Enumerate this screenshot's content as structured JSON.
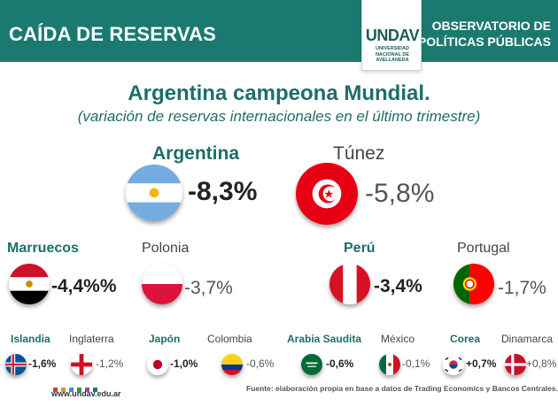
{
  "header": {
    "left_title": "CAÍDA DE RESERVAS",
    "right_line1": "OBSERVATORIO DE",
    "right_line2": "POLÍTICAS PÚBLICAS",
    "logo_text": "UNDAV",
    "logo_sub1": "UNIVERSIDAD",
    "logo_sub2": "NACIONAL DE",
    "logo_sub3": "AVELLANEDA"
  },
  "chart_data": {
    "type": "table",
    "title": "Argentina campeona Mundial.",
    "subtitle": "(variación de reservas internacionales en el último trimestre)",
    "countries": [
      {
        "name": "Argentina",
        "label": "-8,3%",
        "value": -8.3,
        "flag": "argentina-flag"
      },
      {
        "name": "Túnez",
        "label": "-5,8%",
        "value": -5.8,
        "flag": "tunisia-flag"
      },
      {
        "name": "Marruecos",
        "label": "-4,4%%",
        "value": -4.4,
        "flag": "egypt-flag"
      },
      {
        "name": "Polonia",
        "label": "-3,7%",
        "value": -3.7,
        "flag": "poland-flag"
      },
      {
        "name": "Perú",
        "label": "-3,4%",
        "value": -3.4,
        "flag": "peru-flag"
      },
      {
        "name": "Portugal",
        "label": "-1,7%",
        "value": -1.7,
        "flag": "portugal-flag"
      },
      {
        "name": "Islandia",
        "label": "-1,6%",
        "value": -1.6,
        "flag": "iceland-flag"
      },
      {
        "name": "Inglaterra",
        "label": "-1,2%",
        "value": -1.2,
        "flag": "england-flag"
      },
      {
        "name": "Japón",
        "label": "-1,0%",
        "value": -1.0,
        "flag": "japan-flag"
      },
      {
        "name": "Colombia",
        "label": "-0,6%",
        "value": -0.6,
        "flag": "colombia-flag"
      },
      {
        "name": "Arabia Saudita",
        "label": "-0,6%",
        "value": -0.6,
        "flag": "saudi-flag"
      },
      {
        "name": "México",
        "label": "-0,1%",
        "value": -0.1,
        "flag": "mexico-flag"
      },
      {
        "name": "Corea",
        "label": "+0,7%",
        "value": 0.7,
        "flag": "korea-flag"
      },
      {
        "name": "Dinamarca",
        "label": "+0,8%",
        "value": 0.8,
        "flag": "denmark-flag"
      }
    ]
  },
  "colors": {
    "header_bg": "#1b7a70",
    "title": "#1e6e66"
  },
  "footer": {
    "url": "www.undav.edu.ar",
    "note": "Fuente: elaboración propia en base a datos de Trading Economics y Bancos Centrales."
  }
}
